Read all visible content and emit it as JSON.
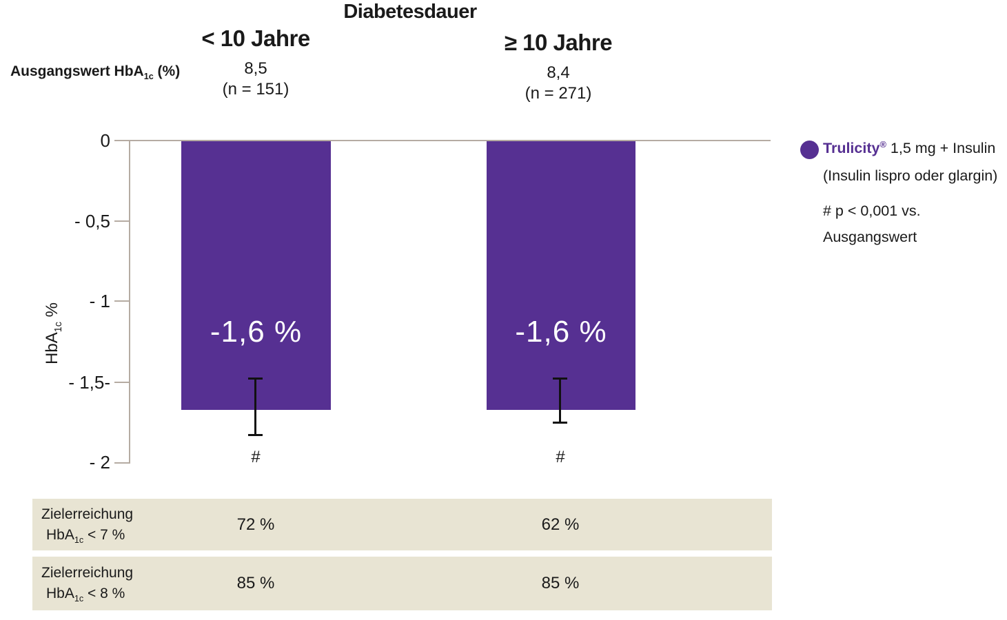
{
  "chart_data": {
    "type": "bar",
    "title": "Diabetesdauer",
    "categories": [
      "< 10 Jahre",
      "≥ 10 Jahre"
    ],
    "series": [
      {
        "name": "Trulicity® 1,5 mg + Insulin (Insulin lispro oder glargin)",
        "values": [
          -1.6,
          -1.6
        ],
        "color": "#563092"
      }
    ],
    "bar_value_labels": [
      "-1,6 %",
      "-1,6 %"
    ],
    "baseline_row": {
      "label": "Ausgangswert HbA1c (%)",
      "values": [
        "8,5",
        "8,4"
      ],
      "n_labels": [
        "(n = 151)",
        "(n = 271)"
      ]
    },
    "ylabel": "HbA1c %",
    "ylim": [
      -2,
      0
    ],
    "ytick_labels": [
      "0",
      "- 0,5",
      "- 1",
      "- 1,5-",
      "- 2"
    ],
    "error_bar_markers": [
      "#",
      "#"
    ],
    "significance_note": "# p < 0,001 vs. Ausgangswert",
    "legend_position": "right",
    "grid": false,
    "target_achievement_rows": [
      {
        "label": "Zielerreichung HbA1c < 7 %",
        "values": [
          "72 %",
          "62 %"
        ]
      },
      {
        "label": "Zielerreichung HbA1c < 8 %",
        "values": [
          "85 %",
          "85 %"
        ]
      }
    ]
  },
  "header": {
    "title": "Diabetesdauer",
    "col1_label": "< 10 Jahre",
    "col2_label": "≥ 10 Jahre",
    "baseline_label_pre": "Ausgangswert HbA",
    "baseline_label_sub": "1c",
    "baseline_label_post": " (%)",
    "col1_baseline": "8,5",
    "col1_n": "(n = 151)",
    "col2_baseline": "8,4",
    "col2_n": "(n = 271)"
  },
  "yaxis": {
    "ticks": [
      "0",
      "- 0,5",
      "- 1",
      "- 1,5-",
      "- 2"
    ],
    "label_pre": "HbA",
    "label_sub": "1c",
    "label_post": " %"
  },
  "bars": {
    "bar1_label": "-1,6 %",
    "bar1_sig": "#",
    "bar2_label": "-1,6 %",
    "bar2_sig": "#"
  },
  "legend": {
    "brand": "Trulicity",
    "reg_mark": "®",
    "line1_rest": " 1,5 mg + Insulin",
    "line2": "(Insulin lispro oder glargin)",
    "note_line1": "# p < 0,001 vs.",
    "note_line2": "Ausgangswert"
  },
  "table": {
    "row1": {
      "line1": "Zielerreichung",
      "line2_pre": "HbA",
      "line2_sub": "1c",
      "line2_post": " < 7 %",
      "val1": "72 %",
      "val2": "62 %"
    },
    "row2": {
      "line1": "Zielerreichung",
      "line2_pre": "HbA",
      "line2_sub": "1c",
      "line2_post": " < 8 %",
      "val1": "85 %",
      "val2": "85 %"
    }
  },
  "colors": {
    "bar_purple": "#563092",
    "table_beige": "#E8E4D3",
    "axis_gray": "#B5ABA2"
  }
}
